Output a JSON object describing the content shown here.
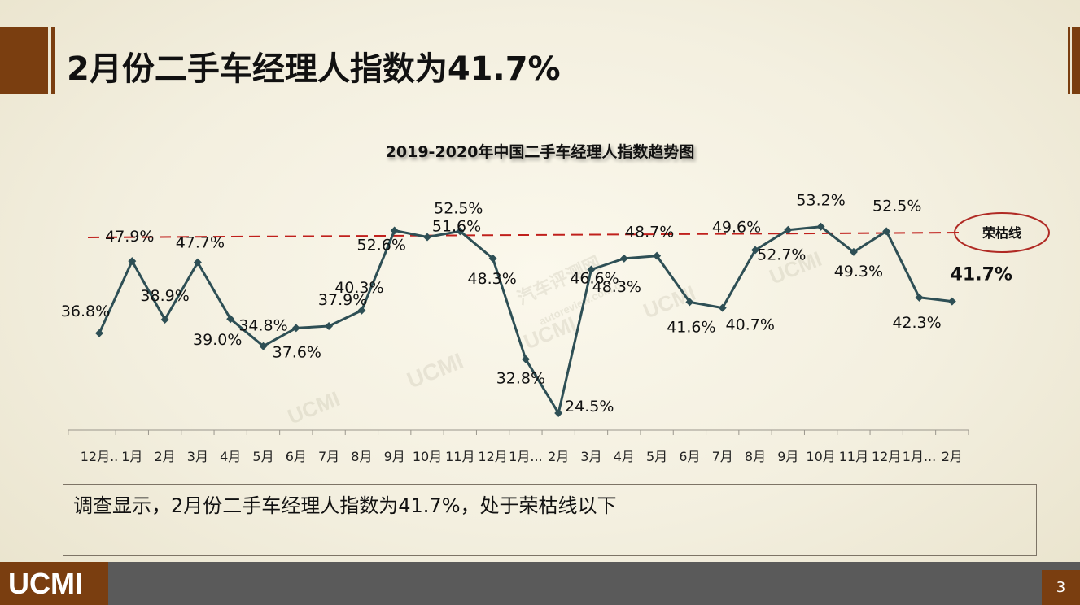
{
  "page": {
    "title": "2月份二手车经理人指数为41.7%",
    "summary": "调查显示，2月份二手车经理人指数为41.7%，处于荣枯线以下",
    "footer_logo": "UCMI",
    "page_number": "3",
    "watermarks": [
      "UCMI",
      "汽车评测网",
      "autoreview.com.cn"
    ]
  },
  "colors": {
    "brand": "#7a3e10",
    "line": "#2e4f55",
    "threshold": "#c0201c",
    "footer": "#5a5a5a"
  },
  "chart_data": {
    "type": "line",
    "title": "2019-2020年中国二手车经理人指数趋势图",
    "categories": [
      "12月..",
      "1月",
      "2月",
      "3月",
      "4月",
      "5月",
      "6月",
      "7月",
      "8月",
      "9月",
      "10月",
      "11月",
      "12月",
      "1月...",
      "2月",
      "3月",
      "4月",
      "5月",
      "6月",
      "7月",
      "8月",
      "9月",
      "10月",
      "11月",
      "12月",
      "1月...",
      "2月"
    ],
    "tick_labels": [
      "12月..",
      "1月",
      "2月",
      "3月",
      "4月",
      "5月",
      "6月",
      "7月",
      "8月",
      "9月",
      "10月",
      "11月",
      "12月",
      "1月...",
      "2月",
      "3月",
      "4月",
      "5月",
      "6月",
      "7月",
      "8月",
      "9月",
      "10月",
      "11月",
      "12月",
      "1月...",
      "2月"
    ],
    "series": [
      {
        "values": [
          36.8,
          47.9,
          38.9,
          47.7,
          39.0,
          34.8,
          37.6,
          37.9,
          40.3,
          52.6,
          51.6,
          52.5,
          48.3,
          32.8,
          24.5,
          46.6,
          48.3,
          48.7,
          41.6,
          40.7,
          49.6,
          52.7,
          53.2,
          49.3,
          52.5,
          42.3,
          41.7
        ],
        "labels": [
          "36.8%",
          "47.9%",
          "38.9%",
          "47.7%",
          "39.0%",
          "34.8%",
          "37.6%",
          "37.9%",
          "40.3%",
          "52.6%",
          "51.6%",
          "52.5%",
          "48.3%",
          "32.8%",
          "24.5%",
          "46.6%",
          "48.3%",
          "48.7%",
          "41.6%",
          "40.7%",
          "49.6%",
          "52.7%",
          "53.2%",
          "49.3%",
          "52.5%",
          "42.3%",
          "41.7%"
        ]
      }
    ],
    "reference_line": {
      "label": "荣枯线",
      "value": 50
    },
    "ylim": [
      20,
      58
    ],
    "grid": false,
    "xlabel": "",
    "ylabel": ""
  }
}
